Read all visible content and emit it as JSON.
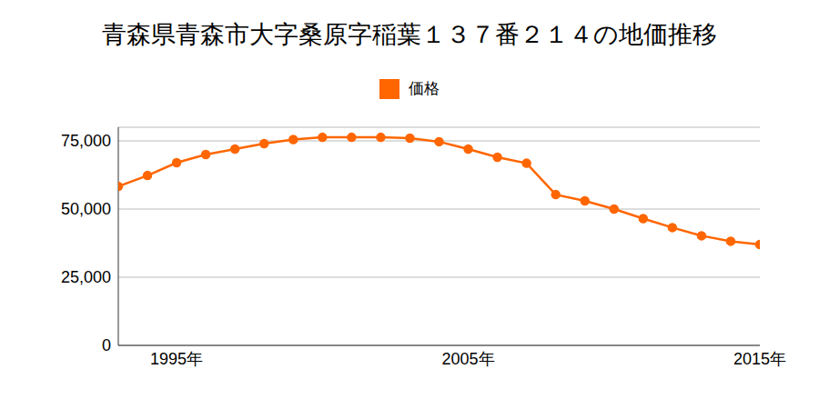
{
  "chart_data": {
    "type": "line",
    "title": "青森県青森市大字桑原字稲葉１３７番２１４の地価推移",
    "x": [
      1993,
      1994,
      1995,
      1996,
      1997,
      1998,
      1999,
      2000,
      2001,
      2002,
      2003,
      2004,
      2005,
      2006,
      2007,
      2008,
      2009,
      2010,
      2011,
      2012,
      2013,
      2014,
      2015
    ],
    "series": [
      {
        "name": "価格",
        "color": "#ff6600",
        "values": [
          58300,
          62300,
          67000,
          70000,
          72000,
          74000,
          75500,
          76300,
          76300,
          76300,
          76000,
          74700,
          72000,
          69000,
          66800,
          55300,
          53000,
          50000,
          46500,
          43200,
          40200,
          38200,
          37000
        ]
      }
    ],
    "xlim": [
      1993,
      2015
    ],
    "xticks": [
      {
        "value": 1995,
        "label": "1995年"
      },
      {
        "value": 2005,
        "label": "2005年"
      },
      {
        "value": 2015,
        "label": "2015年"
      }
    ],
    "ylim": [
      0,
      80000
    ],
    "yticks": [
      0,
      {
        "value": 25000,
        "label": "25,000"
      },
      {
        "value": 50000,
        "label": "50,000"
      },
      {
        "value": 75000,
        "label": "75,000"
      }
    ],
    "grid": true,
    "legend": "top",
    "marker": "circle"
  }
}
